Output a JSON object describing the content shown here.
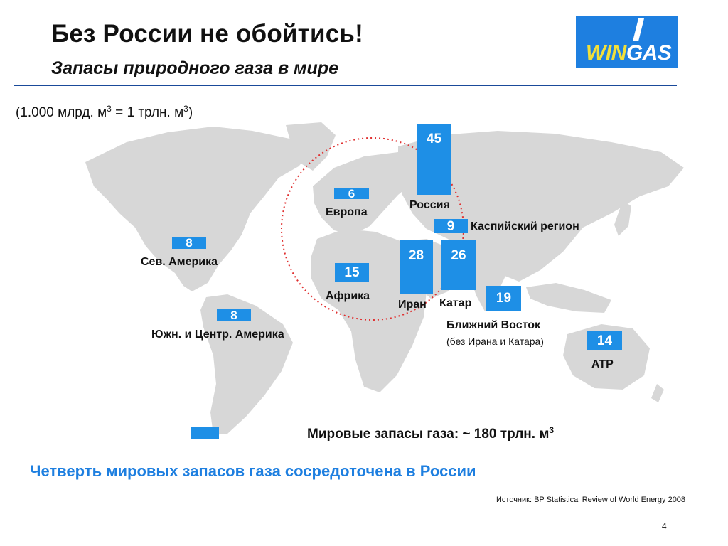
{
  "header": {
    "title": "Без России не обойтись!",
    "subtitle": "Запасы природного газа в мире"
  },
  "logo": {
    "win": "WIN",
    "gas": "GAS"
  },
  "unit_note": {
    "before": "(1.000 млрд. м",
    "mid": " = 1 трлн. м",
    "after": ")",
    "sup": "3"
  },
  "chart_data": {
    "type": "bar",
    "unit": "трлн. м3",
    "regions": [
      {
        "name": "Россия",
        "value": 45
      },
      {
        "name": "Европа",
        "value": 6
      },
      {
        "name": "Каспийский регион",
        "value": 9
      },
      {
        "name": "Сев. Америка",
        "value": 8
      },
      {
        "name": "Африка",
        "value": 15
      },
      {
        "name": "Иран",
        "value": 28
      },
      {
        "name": "Катар",
        "value": 26
      },
      {
        "name": "Ближний Восток",
        "note": "(без Ирана и Катара)",
        "value": 19
      },
      {
        "name": "Южн. и Центр. Америка",
        "value": 8
      },
      {
        "name": "ATP",
        "value": 14
      }
    ],
    "total_label": "Мировые запасы газа: ~ 180 трлн. м",
    "total_sup": "3"
  },
  "conclusion": "Четверть мировых запасов газа сосредоточена в России",
  "source": "Источник: BP Statistical Review of World Energy 2008",
  "page_number": "4",
  "colors": {
    "bar": "#1e8fe6",
    "accent": "#1e7fe0",
    "land": "#d7d7d7",
    "circle": "#e03030"
  }
}
